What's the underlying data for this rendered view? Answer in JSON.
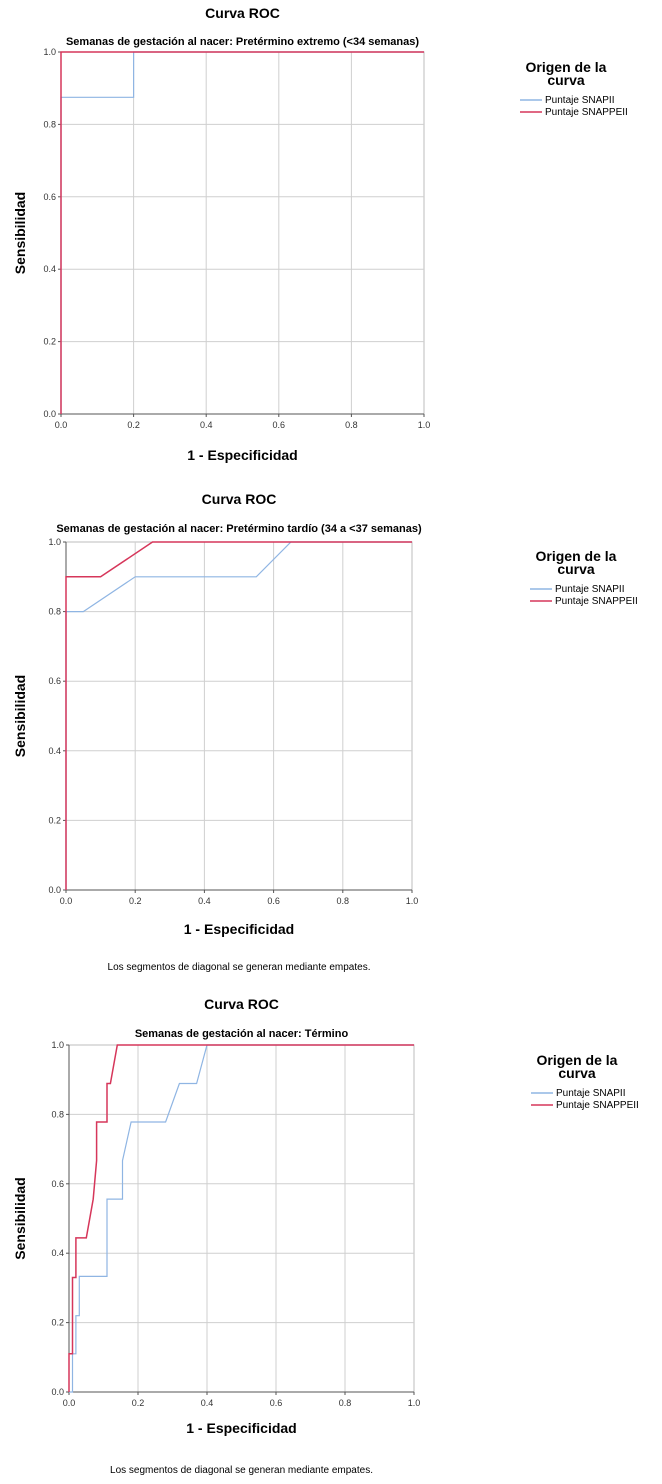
{
  "charts": [
    {
      "title": "Curva ROC",
      "subtitle": "Semanas de gestación al nacer: Pretérmino extremo (<34 semanas)",
      "footnote": ""
    },
    {
      "title": "Curva ROC",
      "subtitle": "Semanas de gestación al nacer: Pretérmino tardío (34 a <37 semanas)",
      "footnote": "Los segmentos de diagonal se generan mediante empates."
    },
    {
      "title": "Curva ROC",
      "subtitle": "Semanas de gestación al nacer: Término",
      "footnote": "Los segmentos de diagonal se generan mediante empates."
    }
  ],
  "chart_data": [
    {
      "type": "line",
      "title": "Curva ROC",
      "subtitle": "Semanas de gestación al nacer: Pretérmino extremo (<34 semanas)",
      "xlabel": "1 - Especificidad",
      "ylabel": "Sensibilidad",
      "xlim": [
        0,
        1
      ],
      "ylim": [
        0,
        1
      ],
      "xticks": [
        "0.0",
        "0.2",
        "0.4",
        "0.6",
        "0.8",
        "1.0"
      ],
      "yticks": [
        "0.0",
        "0.2",
        "0.4",
        "0.6",
        "0.8",
        "1.0"
      ],
      "grid": true,
      "legend_title": "Origen de la curva",
      "legend_position": "right",
      "series": [
        {
          "name": "Puntaje SNAPII",
          "color": "#8fb5e3",
          "x": [
            0,
            0,
            0.2,
            0.2,
            1
          ],
          "y": [
            0,
            0.875,
            0.875,
            1,
            1
          ]
        },
        {
          "name": "Puntaje SNAPPEII",
          "color": "#d6365a",
          "x": [
            0,
            0,
            1
          ],
          "y": [
            0,
            1,
            1
          ]
        }
      ]
    },
    {
      "type": "line",
      "title": "Curva ROC",
      "subtitle": "Semanas de gestación al nacer: Pretérmino tardío (34 a <37 semanas)",
      "xlabel": "1 - Especificidad",
      "ylabel": "Sensibilidad",
      "xlim": [
        0,
        1
      ],
      "ylim": [
        0,
        1
      ],
      "xticks": [
        "0.0",
        "0.2",
        "0.4",
        "0.6",
        "0.8",
        "1.0"
      ],
      "yticks": [
        "0.0",
        "0.2",
        "0.4",
        "0.6",
        "0.8",
        "1.0"
      ],
      "grid": true,
      "legend_title": "Origen de la curva",
      "legend_position": "right",
      "series": [
        {
          "name": "Puntaje SNAPII",
          "color": "#8fb5e3",
          "x": [
            0,
            0,
            0.05,
            0.2,
            0.55,
            0.65,
            1
          ],
          "y": [
            0,
            0.8,
            0.8,
            0.9,
            0.9,
            1,
            1
          ]
        },
        {
          "name": "Puntaje SNAPPEII",
          "color": "#d6365a",
          "x": [
            0,
            0,
            0.1,
            0.25,
            1
          ],
          "y": [
            0,
            0.9,
            0.9,
            1,
            1
          ]
        }
      ]
    },
    {
      "type": "line",
      "title": "Curva ROC",
      "subtitle": "Semanas de gestación al nacer: Término",
      "xlabel": "1 - Especificidad",
      "ylabel": "Sensibilidad",
      "xlim": [
        0,
        1
      ],
      "ylim": [
        0,
        1
      ],
      "xticks": [
        "0.0",
        "0.2",
        "0.4",
        "0.6",
        "0.8",
        "1.0"
      ],
      "yticks": [
        "0.0",
        "0.2",
        "0.4",
        "0.6",
        "0.8",
        "1.0"
      ],
      "grid": true,
      "legend_title": "Origen de la curva",
      "legend_position": "right",
      "series": [
        {
          "name": "Puntaje SNAPII",
          "color": "#8fb5e3",
          "x": [
            0,
            0.01,
            0.01,
            0.02,
            0.02,
            0.03,
            0.03,
            0.11,
            0.11,
            0.155,
            0.155,
            0.18,
            0.28,
            0.32,
            0.37,
            0.4,
            1
          ],
          "y": [
            0,
            0,
            0.11,
            0.11,
            0.22,
            0.22,
            0.333,
            0.333,
            0.556,
            0.556,
            0.667,
            0.778,
            0.778,
            0.889,
            0.889,
            1,
            1
          ]
        },
        {
          "name": "Puntaje SNAPPEII",
          "color": "#d6365a",
          "x": [
            0,
            0,
            0.01,
            0.01,
            0.02,
            0.02,
            0.05,
            0.07,
            0.08,
            0.08,
            0.11,
            0.11,
            0.12,
            0.14,
            1
          ],
          "y": [
            0,
            0.11,
            0.11,
            0.33,
            0.33,
            0.444,
            0.444,
            0.556,
            0.667,
            0.778,
            0.778,
            0.889,
            0.889,
            1,
            1
          ]
        }
      ]
    }
  ]
}
